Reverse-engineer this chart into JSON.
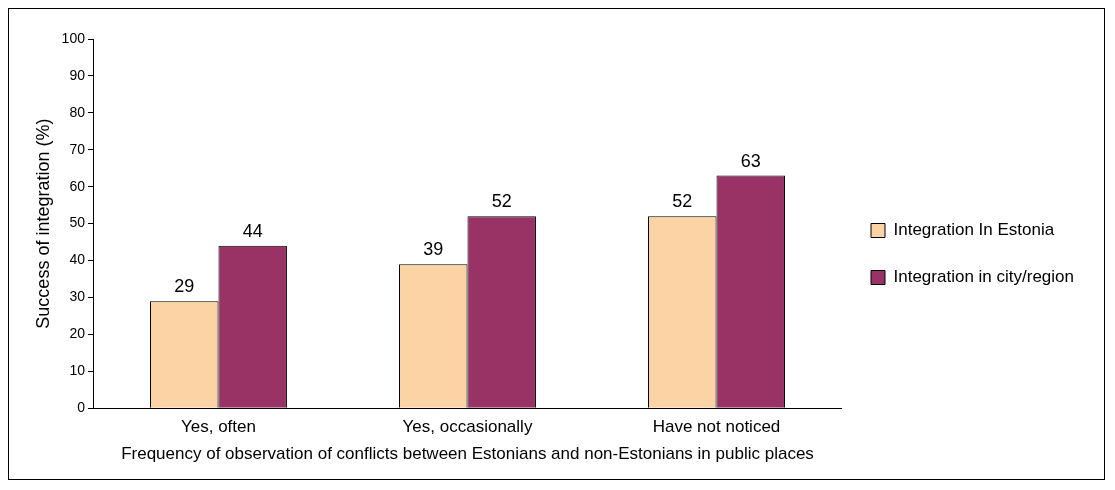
{
  "chart_data": {
    "type": "bar",
    "ylabel": "Success of integration (%)",
    "xlabel": "Frequency of observation of conflicts between Estonians and non-Estonians in public places",
    "categories": [
      "Yes, often",
      "Yes, occasionally",
      "Have not noticed"
    ],
    "series": [
      {
        "name": "Integration In Estonia",
        "color": "#fcd3a4",
        "values": [
          29,
          39,
          52
        ]
      },
      {
        "name": "Integration in city/region",
        "color": "#993366",
        "values": [
          44,
          52,
          63
        ]
      }
    ],
    "ylim": [
      0,
      100
    ],
    "yticks": [
      0,
      10,
      20,
      30,
      40,
      50,
      60,
      70,
      80,
      90,
      100
    ],
    "grid": false,
    "legend": "right",
    "data_labels": true
  }
}
